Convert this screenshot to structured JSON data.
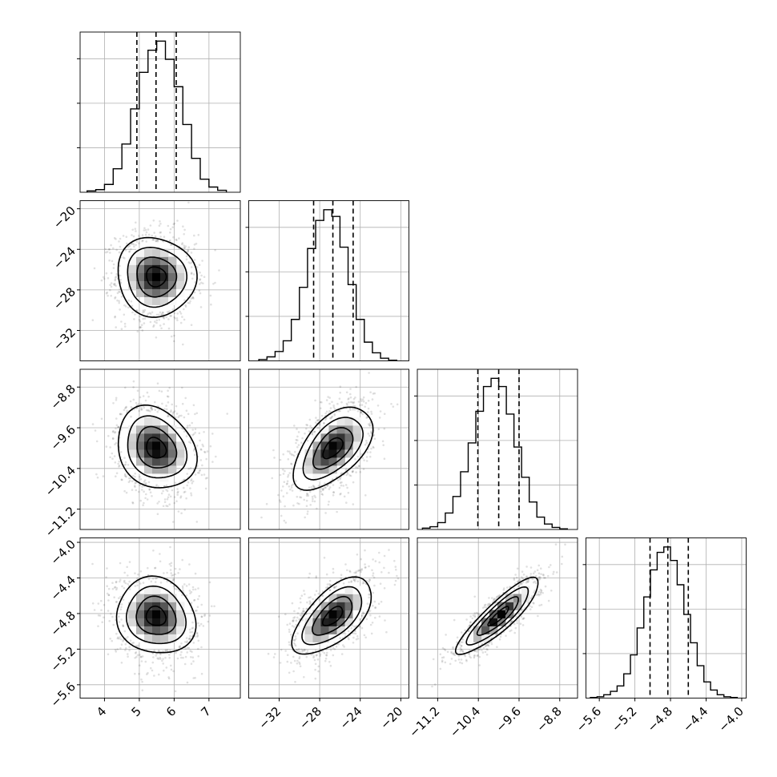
{
  "chart_data": {
    "type": "corner",
    "title": "",
    "grid": true,
    "grid_color": "#b0b0b0",
    "density_color": "#000000",
    "parameters": [
      {
        "index": 0,
        "range": [
          3.3,
          7.9
        ],
        "ticks": [
          4,
          5,
          6,
          7
        ],
        "tick_labels": [
          "4",
          "5",
          "6",
          "7"
        ],
        "quantiles": [
          4.93,
          5.48,
          6.06
        ],
        "hist_bin_edges": [
          3.5,
          3.75,
          4.0,
          4.25,
          4.5,
          4.75,
          5.0,
          5.25,
          5.5,
          5.75,
          6.0,
          6.25,
          6.5,
          6.75,
          7.0,
          7.25,
          7.5
        ],
        "hist_counts": [
          2,
          4,
          12,
          36,
          74,
          128,
          184,
          218,
          232,
          204,
          162,
          104,
          52,
          20,
          8,
          3
        ]
      },
      {
        "index": 1,
        "range": [
          -35,
          -19.2
        ],
        "ticks": [
          -32,
          -28,
          -24,
          -20
        ],
        "tick_labels": [
          "−32",
          "−28",
          "−24",
          "−20"
        ],
        "quantiles": [
          -28.6,
          -26.7,
          -24.7
        ],
        "hist_bin_edges": [
          -34.0,
          -33.2,
          -32.4,
          -31.6,
          -30.8,
          -30.0,
          -29.2,
          -28.4,
          -27.6,
          -26.8,
          -26.0,
          -25.2,
          -24.4,
          -23.6,
          -22.8,
          -22.0,
          -21.2,
          -20.4
        ],
        "hist_counts": [
          2,
          6,
          14,
          30,
          62,
          110,
          168,
          210,
          226,
          216,
          170,
          114,
          62,
          28,
          12,
          4,
          1
        ]
      },
      {
        "index": 2,
        "range": [
          -11.6,
          -8.45
        ],
        "ticks": [
          -11.2,
          -10.4,
          -9.6,
          -8.8
        ],
        "tick_labels": [
          "−11.2",
          "−10.4",
          "−9.6",
          "−8.8"
        ],
        "quantiles": [
          -10.41,
          -10.0,
          -9.6
        ],
        "hist_bin_edges": [
          -11.5,
          -11.35,
          -11.2,
          -11.05,
          -10.9,
          -10.75,
          -10.6,
          -10.45,
          -10.3,
          -10.15,
          -10.0,
          -9.85,
          -9.7,
          -9.55,
          -9.4,
          -9.25,
          -9.1,
          -8.95,
          -8.8,
          -8.65
        ],
        "hist_counts": [
          2,
          4,
          10,
          24,
          48,
          84,
          126,
          172,
          208,
          220,
          208,
          168,
          120,
          76,
          40,
          18,
          8,
          3,
          1
        ]
      },
      {
        "index": 3,
        "range": [
          -5.75,
          -3.95
        ],
        "ticks": [
          -5.6,
          -5.2,
          -4.8,
          -4.4,
          -4.0
        ],
        "tick_labels": [
          "−5.6",
          "−5.2",
          "−4.8",
          "−4.4",
          "−4.0"
        ],
        "quantiles": [
          -5.03,
          -4.83,
          -4.6
        ],
        "hist_bin_edges": [
          -5.7,
          -5.625,
          -5.55,
          -5.475,
          -5.4,
          -5.325,
          -5.25,
          -5.175,
          -5.1,
          -5.025,
          -4.95,
          -4.875,
          -4.8,
          -4.725,
          -4.65,
          -4.575,
          -4.5,
          -4.425,
          -4.35,
          -4.275,
          -4.2,
          -4.125,
          -4.05
        ],
        "hist_counts": [
          1,
          2,
          5,
          10,
          18,
          36,
          64,
          104,
          150,
          190,
          216,
          224,
          204,
          168,
          124,
          82,
          48,
          24,
          12,
          5,
          2,
          1
        ]
      }
    ],
    "correlations": [
      [
        1.0,
        -0.05,
        -0.2,
        -0.1
      ],
      [
        -0.05,
        1.0,
        0.55,
        0.62
      ],
      [
        -0.2,
        0.55,
        1.0,
        0.88
      ],
      [
        -0.1,
        0.62,
        0.88,
        1.0
      ]
    ],
    "sigma_levels": [
      0.5,
      1.0,
      1.5,
      2.0
    ],
    "sample_count": 1400,
    "outlier_count": 300
  }
}
